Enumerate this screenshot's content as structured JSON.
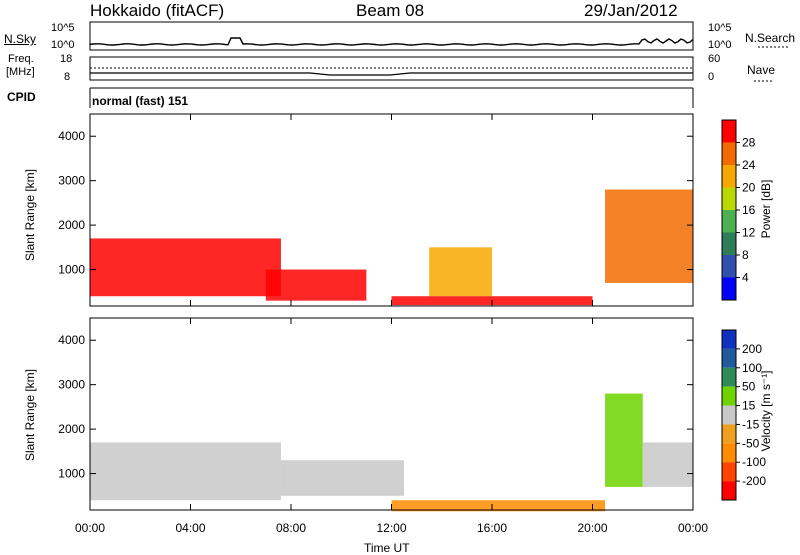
{
  "header": {
    "title_left": "Hokkaido (fitACF)",
    "title_center": "Beam 08",
    "title_right": "29/Jan/2012"
  },
  "noise_panel": {
    "left_label": "N.Sky",
    "left_ticks": [
      "10^5",
      "10^0"
    ],
    "right_ticks": [
      "10^5",
      "10^0"
    ],
    "right_label": "N.Search"
  },
  "freq_panel": {
    "left_label_line1": "Freq.",
    "left_label_line2": "[MHz]",
    "left_ticks": [
      "18",
      "8"
    ],
    "right_ticks": [
      "60",
      "0"
    ],
    "right_label": "Nave"
  },
  "cpid_panel": {
    "label": "CPID",
    "mode_text": "normal (fast) 151"
  },
  "colors": {
    "power": [
      "#0000ff",
      "#3050b0",
      "#2e7d5a",
      "#4caf50",
      "#b8d800",
      "#f7a800",
      "#f26b00",
      "#ff0000"
    ],
    "velocity": [
      "#ff0000",
      "#ff4400",
      "#ff8c00",
      "#f0a020",
      "#c8c8c8",
      "#6dd400",
      "#2e8b57",
      "#1f5a9c",
      "#1030c0"
    ]
  },
  "chart_data": [
    {
      "type": "heatmap",
      "title": "",
      "xlabel": "",
      "ylabel": "Slant Range [km]",
      "xlim": [
        "00:00",
        "00:00"
      ],
      "ylim": [
        180,
        4500
      ],
      "x_ticks": [
        "00:00",
        "04:00",
        "08:00",
        "12:00",
        "16:00",
        "20:00",
        "00:00"
      ],
      "y_ticks": [
        "1000",
        "2000",
        "3000",
        "4000"
      ],
      "colorbar": {
        "label": "Power [dB]",
        "ticks": [
          "4",
          "8",
          "12",
          "16",
          "20",
          "24",
          "28"
        ],
        "range": [
          0,
          32
        ]
      },
      "regions": [
        {
          "t0": 0.0,
          "t1": 7.6,
          "r0": 400,
          "r1": 1700,
          "power": 28
        },
        {
          "t0": 7.0,
          "t1": 11.0,
          "r0": 300,
          "r1": 1000,
          "power": 28
        },
        {
          "t0": 13.5,
          "t1": 16.0,
          "r0": 400,
          "r1": 1500,
          "power": 20
        },
        {
          "t0": 20.5,
          "t1": 24.0,
          "r0": 700,
          "r1": 2800,
          "power": 24
        },
        {
          "t0": 12.0,
          "t1": 20.0,
          "r0": 200,
          "r1": 400,
          "power": 28
        }
      ]
    },
    {
      "type": "heatmap",
      "title": "",
      "xlabel": "Time UT",
      "ylabel": "Slant Range [km]",
      "xlim": [
        "00:00",
        "00:00"
      ],
      "ylim": [
        180,
        4500
      ],
      "x_ticks": [
        "00:00",
        "04:00",
        "08:00",
        "12:00",
        "16:00",
        "20:00",
        "00:00"
      ],
      "y_ticks": [
        "1000",
        "2000",
        "3000",
        "4000"
      ],
      "colorbar": {
        "label": "Velocity [m s⁻¹]",
        "ticks": [
          "200",
          "100",
          "50",
          "15",
          "-15",
          "-50",
          "-100",
          "-200"
        ],
        "range": [
          -250,
          250
        ]
      },
      "regions": [
        {
          "t0": 0.0,
          "t1": 7.6,
          "r0": 400,
          "r1": 1700,
          "velocity": 0
        },
        {
          "t0": 7.6,
          "t1": 12.5,
          "r0": 500,
          "r1": 1300,
          "velocity": 0
        },
        {
          "t0": 12.0,
          "t1": 20.5,
          "r0": 150,
          "r1": 400,
          "velocity": -80
        },
        {
          "t0": 20.5,
          "t1": 22.0,
          "r0": 700,
          "r1": 2800,
          "velocity": 40
        },
        {
          "t0": 22.0,
          "t1": 24.0,
          "r0": 700,
          "r1": 1700,
          "velocity": 0
        }
      ]
    }
  ]
}
